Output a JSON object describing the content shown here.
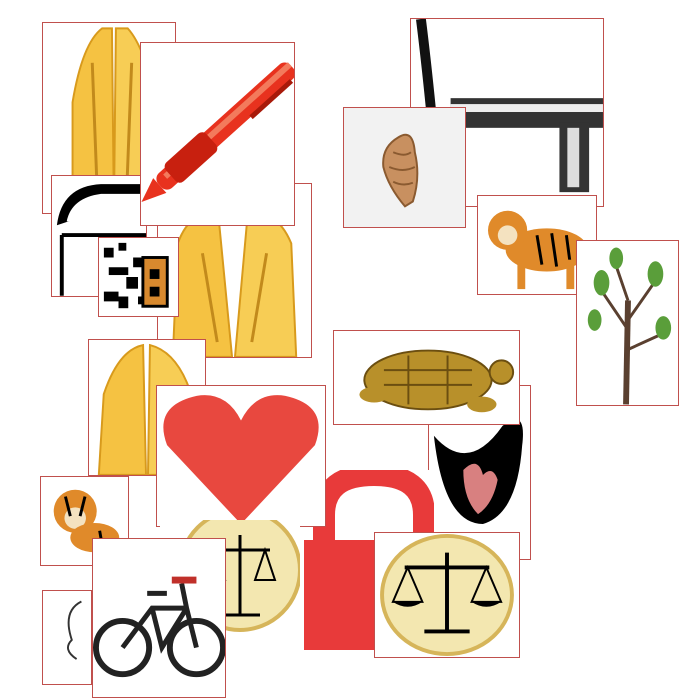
{
  "canvas": {
    "background": "#ffffff",
    "border_color": "#c0504d"
  },
  "images": [
    {
      "icon": "praying-hands-icon",
      "color": "#f5c242"
    },
    {
      "icon": "lock-icon",
      "color": "#000000"
    },
    {
      "icon": "pen-icon",
      "color": "#e8321e"
    },
    {
      "icon": "praying-hands-icon",
      "color": "#f5c242"
    },
    {
      "icon": "qr-pattern-icon",
      "color": "#000000"
    },
    {
      "icon": "key-icon",
      "color": "#333333"
    },
    {
      "icon": "seashell-icon",
      "color": "#c89060"
    },
    {
      "icon": "tiger-icon",
      "color": "#e08a2a"
    },
    {
      "icon": "tree-icon",
      "color": "#5a9e3a"
    },
    {
      "icon": "praying-hands-icon",
      "color": "#f5c242"
    },
    {
      "icon": "turtle-figurine-icon",
      "color": "#b8902a"
    },
    {
      "icon": "bird-heart-icon",
      "color": "#000000"
    },
    {
      "icon": "heart-icon",
      "color": "#e8483f"
    },
    {
      "icon": "tiger-icon",
      "color": "#e08a2a"
    },
    {
      "icon": "scales-of-justice-icon",
      "color": "#f3e7b0"
    },
    {
      "icon": "lock-icon",
      "color": "#e83a3a"
    },
    {
      "icon": "bicycle-icon",
      "color": "#222222"
    },
    {
      "icon": "scales-of-justice-icon",
      "color": "#f3e7b0"
    }
  ]
}
